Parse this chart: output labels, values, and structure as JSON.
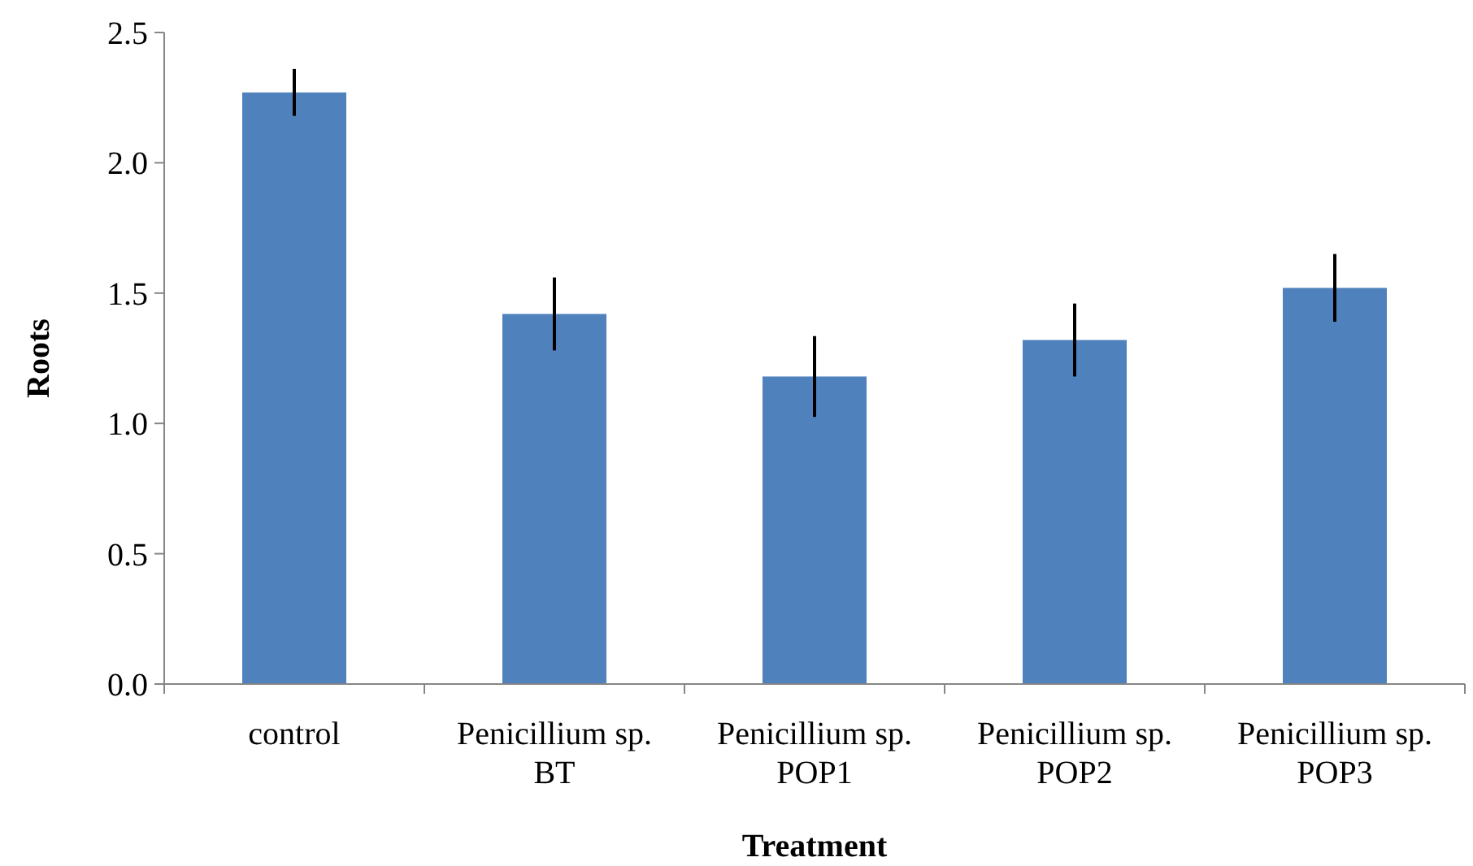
{
  "chart_data": {
    "type": "bar",
    "xlabel": "Treatment",
    "ylabel": "Roots",
    "categories": [
      "control",
      "Penicillium sp. BT",
      "Penicillium sp. POP1",
      "Penicillium sp. POP2",
      "Penicillium sp. POP3"
    ],
    "values": [
      2.27,
      1.42,
      1.18,
      1.32,
      1.52
    ],
    "errors": [
      0.09,
      0.14,
      0.155,
      0.14,
      0.13
    ],
    "color": "#4f81bd",
    "ylim": [
      0,
      2.5
    ],
    "yticks": [
      {
        "value": 0,
        "label": "0.0"
      },
      {
        "value": 0.5,
        "label": "0.5"
      },
      {
        "value": 1,
        "label": "1.0"
      },
      {
        "value": 1.5,
        "label": "1.5"
      },
      {
        "value": 2,
        "label": "2.0"
      },
      {
        "value": 2.5,
        "label": "2.5"
      }
    ],
    "grid": false
  }
}
